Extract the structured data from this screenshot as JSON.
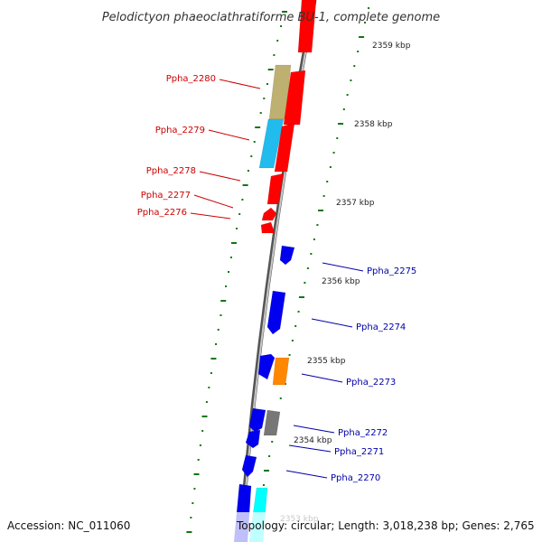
{
  "title": "Pelodictyon phaeoclathratiforme BU-1, complete genome",
  "footer": {
    "accession": "Accession: NC_011060",
    "topology": "Topology: circular; Length: 3,018,238 bp; Genes: 2,765"
  },
  "colors": {
    "forward_label": "#cc0000",
    "reverse_label": "#0000aa",
    "red": "#ff0000",
    "blue": "#0000ee",
    "tan": "#bdb070",
    "sky": "#22bbee",
    "cyan": "#00ffff",
    "orange": "#ff8800",
    "gray": "#777777",
    "tick": "#117711"
  },
  "kbp_labels": [
    {
      "pos": 2359,
      "text": "2359 kbp"
    },
    {
      "pos": 2358,
      "text": "2358 kbp"
    },
    {
      "pos": 2357,
      "text": "2357 kbp"
    },
    {
      "pos": 2356,
      "text": "2356 kbp"
    },
    {
      "pos": 2355,
      "text": "2355 kbp"
    },
    {
      "pos": 2354,
      "text": "2354 kbp"
    },
    {
      "pos": 2353,
      "text": "2353 kbp"
    }
  ],
  "gene_labels": [
    {
      "id": "Ppha_2280",
      "strand": "forward"
    },
    {
      "id": "Ppha_2279",
      "strand": "forward"
    },
    {
      "id": "Ppha_2278",
      "strand": "forward"
    },
    {
      "id": "Ppha_2277",
      "strand": "forward"
    },
    {
      "id": "Ppha_2276",
      "strand": "forward"
    },
    {
      "id": "Ppha_2275",
      "strand": "reverse"
    },
    {
      "id": "Ppha_2274",
      "strand": "reverse"
    },
    {
      "id": "Ppha_2273",
      "strand": "reverse"
    },
    {
      "id": "Ppha_2272",
      "strand": "reverse"
    },
    {
      "id": "Ppha_2271",
      "strand": "reverse"
    },
    {
      "id": "Ppha_2270",
      "strand": "reverse"
    }
  ]
}
